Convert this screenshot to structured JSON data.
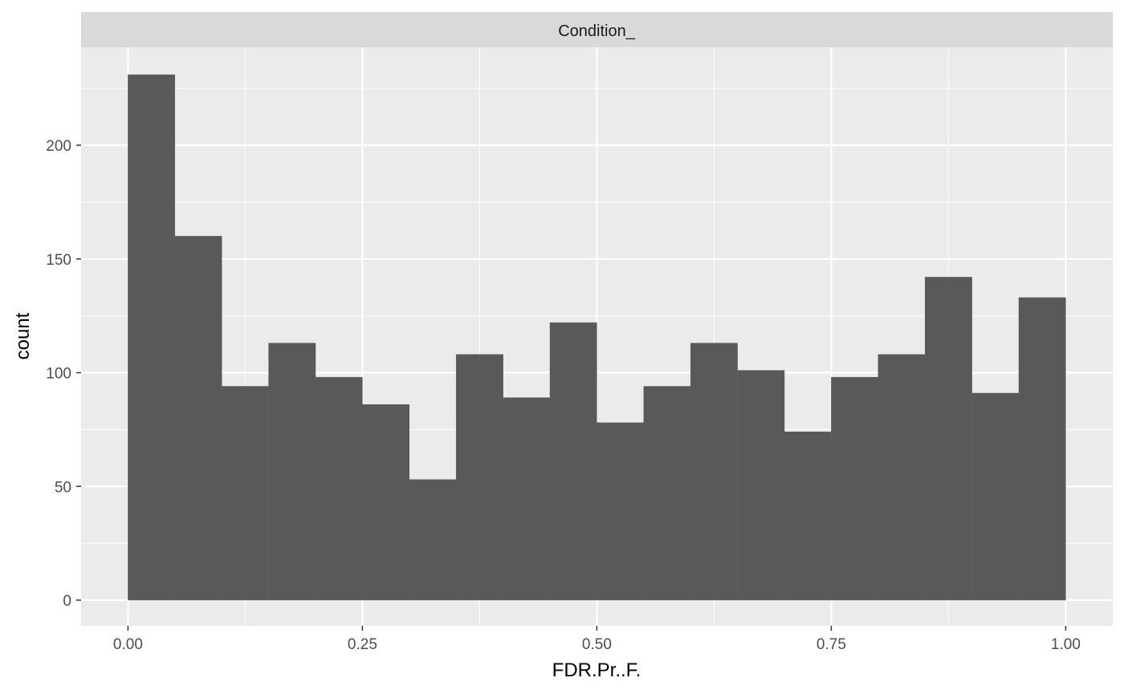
{
  "chart_data": {
    "type": "bar",
    "subtype": "histogram",
    "facet_label": "Condition_",
    "xlabel": "FDR.Pr..F.",
    "ylabel": "count",
    "xlim": [
      -0.025,
      1.025
    ],
    "ylim": [
      0,
      231
    ],
    "bin_width": 0.05,
    "bin_starts": [
      0.0,
      0.05,
      0.1,
      0.15,
      0.2,
      0.25,
      0.3,
      0.35,
      0.4,
      0.45,
      0.5,
      0.55,
      0.6,
      0.65,
      0.7,
      0.75,
      0.8,
      0.85,
      0.9,
      0.95
    ],
    "values": [
      231,
      160,
      94,
      113,
      98,
      86,
      53,
      108,
      89,
      122,
      78,
      94,
      113,
      101,
      74,
      98,
      108,
      142,
      91,
      133
    ],
    "x_ticks": [
      0.0,
      0.25,
      0.5,
      0.75,
      1.0
    ],
    "x_tick_labels": [
      "0.00",
      "0.25",
      "0.50",
      "0.75",
      "1.00"
    ],
    "y_ticks": [
      0,
      50,
      100,
      150,
      200
    ],
    "y_tick_labels": [
      "0",
      "50",
      "100",
      "150",
      "200"
    ],
    "grid": true,
    "legend": "none"
  },
  "colors": {
    "panel_bg": "#ebebeb",
    "strip_bg": "#d9d9d9",
    "bar_fill": "#595959",
    "grid_major": "#ffffff",
    "grid_minor": "#f5f5f5",
    "tick_mark": "#333333"
  }
}
